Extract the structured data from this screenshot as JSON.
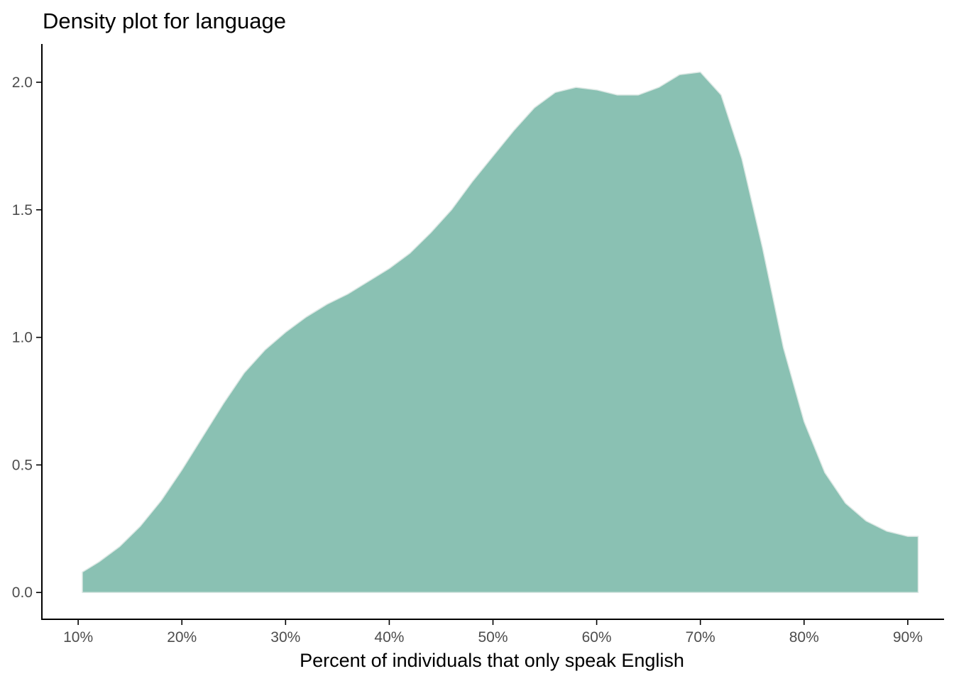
{
  "chart_data": {
    "type": "area",
    "title": "Density plot for language",
    "xlabel": "Percent of individuals that only speak English",
    "ylabel": "",
    "xlim": [
      0.065,
      0.935
    ],
    "ylim": [
      -0.105,
      2.15
    ],
    "x_ticks": [
      0.1,
      0.2,
      0.3,
      0.4,
      0.5,
      0.6,
      0.7,
      0.8,
      0.9
    ],
    "x_tick_labels": [
      "10%",
      "20%",
      "30%",
      "40%",
      "50%",
      "60%",
      "70%",
      "80%",
      "90%"
    ],
    "y_ticks": [
      0.0,
      0.5,
      1.0,
      1.5,
      2.0
    ],
    "y_tick_labels": [
      "0.0",
      "0.5",
      "1.0",
      "1.5",
      "2.0"
    ],
    "fill_color": "#8AC1B3",
    "outline_color": "#DCE8E4",
    "grid": false,
    "series": [
      {
        "x": [
          0.104,
          0.12,
          0.14,
          0.16,
          0.18,
          0.2,
          0.22,
          0.24,
          0.26,
          0.28,
          0.3,
          0.32,
          0.34,
          0.36,
          0.38,
          0.4,
          0.42,
          0.44,
          0.46,
          0.48,
          0.5,
          0.52,
          0.54,
          0.56,
          0.58,
          0.6,
          0.62,
          0.64,
          0.66,
          0.68,
          0.7,
          0.72,
          0.74,
          0.76,
          0.78,
          0.8,
          0.82,
          0.84,
          0.86,
          0.88,
          0.9,
          0.91
        ],
        "y": [
          0.08,
          0.12,
          0.18,
          0.26,
          0.36,
          0.48,
          0.61,
          0.74,
          0.86,
          0.95,
          1.02,
          1.08,
          1.13,
          1.17,
          1.22,
          1.27,
          1.33,
          1.41,
          1.5,
          1.61,
          1.71,
          1.81,
          1.9,
          1.96,
          1.98,
          1.97,
          1.95,
          1.95,
          1.98,
          2.03,
          2.04,
          1.95,
          1.7,
          1.35,
          0.96,
          0.67,
          0.47,
          0.35,
          0.28,
          0.24,
          0.22,
          0.22
        ]
      }
    ]
  }
}
